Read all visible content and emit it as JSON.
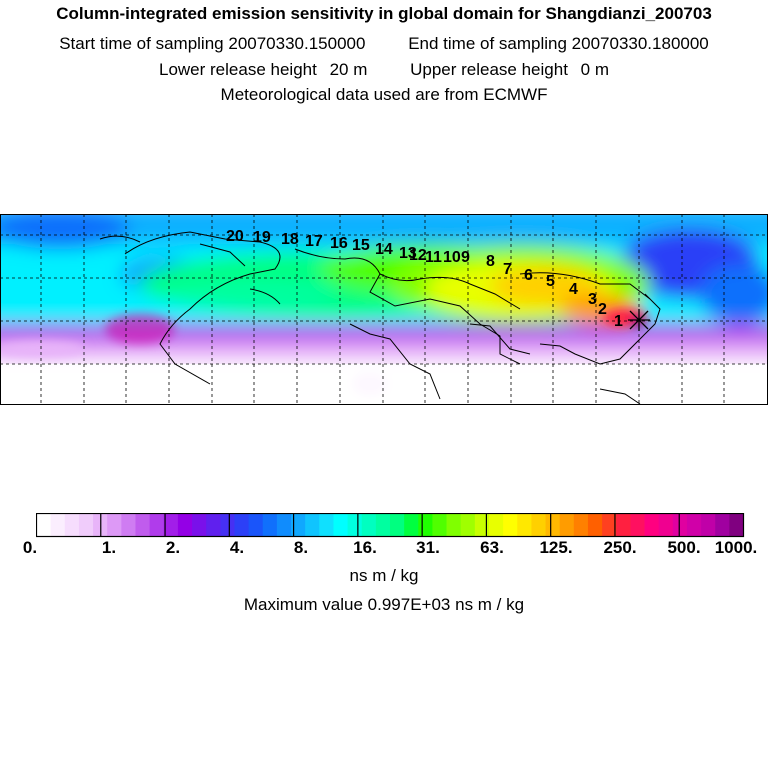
{
  "header": {
    "title": "Column-integrated emission sensitivity in global domain for Shangdianzi_200703",
    "start_label": "Start time of sampling",
    "start_value": "20070330.150000",
    "end_label": "End time of sampling",
    "end_value": "20070330.180000",
    "lower_label": "Lower release height",
    "lower_value": "20 m",
    "upper_label": "Upper release height",
    "upper_value": "0 m",
    "met_line": "Meteorological data used are from ECMWF"
  },
  "map": {
    "receptor_marker": "x-marker-icon",
    "trajectory_labels": [
      "1",
      "2",
      "3",
      "4",
      "5",
      "6",
      "7",
      "8",
      "9",
      "10",
      "11",
      "12",
      "13",
      "14",
      "15",
      "16",
      "17",
      "18",
      "19",
      "20"
    ]
  },
  "colorbar": {
    "ticks": [
      "0.",
      "1.",
      "2.",
      "4.",
      "8.",
      "16.",
      "31.",
      "63.",
      "125.",
      "250.",
      "500.",
      "1000."
    ],
    "colors": [
      "#ffffff",
      "#fbeefe",
      "#f6ddfd",
      "#f0ccfb",
      "#e8b4f9",
      "#dd99f6",
      "#cf7cf2",
      "#c05ced",
      "#b03ceb",
      "#a21ee9",
      "#9400e6",
      "#7a10ea",
      "#6020ee",
      "#4630f3",
      "#2c40f7",
      "#1a55fa",
      "#1070fc",
      "#108cfd",
      "#10a8fe",
      "#10c4fe",
      "#10e0fe",
      "#00ffff",
      "#00ffe0",
      "#00ffc0",
      "#00ffa0",
      "#00ff80",
      "#00ff40",
      "#20ff00",
      "#50ff00",
      "#80ff00",
      "#a0ff00",
      "#c8ff00",
      "#e8ff00",
      "#ffff00",
      "#ffe800",
      "#ffd000",
      "#ffb800",
      "#ff9c00",
      "#ff8000",
      "#ff6000",
      "#ff4020",
      "#ff2040",
      "#ff1060",
      "#ff0080",
      "#f00090",
      "#e000a0",
      "#d000a8",
      "#c000a8",
      "#a000a0",
      "#800080"
    ],
    "unit": "ns m / kg"
  },
  "max_value": {
    "label": "Maximum value",
    "value": "0.997E+03",
    "unit": "ns m / kg"
  }
}
